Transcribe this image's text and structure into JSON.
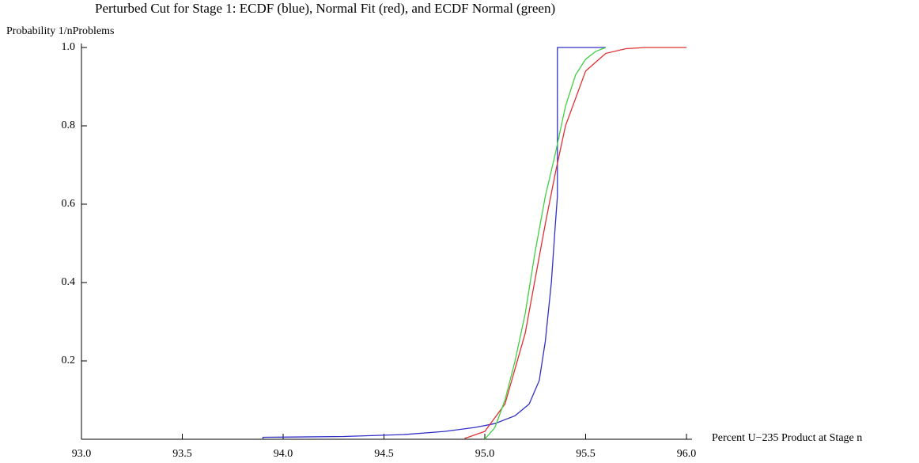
{
  "chart_data": {
    "type": "line",
    "title": "Perturbed Cut for Stage 1:  ECDF (blue), Normal Fit (red), and ECDF Normal (green)",
    "y_label": "Probability 1/nProblems",
    "x_label": "Percent U−235 Product at Stage n",
    "xlim": [
      93,
      96
    ],
    "ylim": [
      0,
      1
    ],
    "xticks": [
      {
        "value": 93,
        "label": "93.0"
      },
      93.5,
      {
        "value": 94,
        "label": "94.0"
      },
      94.5,
      {
        "value": 95,
        "label": "95.0"
      },
      95.5,
      {
        "value": 96,
        "label": "96.0"
      }
    ],
    "yticks": [
      0.2,
      0.4,
      0.6,
      0.8,
      {
        "value": 1,
        "label": "1.0"
      }
    ],
    "series": [
      {
        "color": "#3030c8",
        "x": [
          93.9,
          93.9,
          94.3,
          94.6,
          94.8,
          94.95,
          95.05,
          95.15,
          95.22,
          95.27,
          95.3,
          95.33,
          95.35,
          95.36,
          95.36,
          95.6
        ],
        "values": [
          0,
          0.005,
          0.007,
          0.012,
          0.02,
          0.03,
          0.04,
          0.06,
          0.09,
          0.15,
          0.25,
          0.4,
          0.55,
          0.62,
          1,
          1
        ]
      },
      {
        "color": "#e03030",
        "x": [
          94.9,
          95.0,
          95.1,
          95.2,
          95.25,
          95.3,
          95.35,
          95.4,
          95.5,
          95.6,
          95.7,
          95.8,
          96.0
        ],
        "values": [
          0.002,
          0.02,
          0.09,
          0.27,
          0.41,
          0.55,
          0.68,
          0.8,
          0.94,
          0.985,
          0.997,
          1,
          1
        ]
      },
      {
        "color": "#40d040",
        "x": [
          95.0,
          95.05,
          95.1,
          95.15,
          95.2,
          95.25,
          95.3,
          95.35,
          95.4,
          95.45,
          95.5,
          95.55,
          95.6
        ],
        "values": [
          0,
          0.03,
          0.1,
          0.2,
          0.32,
          0.48,
          0.62,
          0.73,
          0.85,
          0.93,
          0.97,
          0.99,
          1
        ]
      }
    ]
  }
}
